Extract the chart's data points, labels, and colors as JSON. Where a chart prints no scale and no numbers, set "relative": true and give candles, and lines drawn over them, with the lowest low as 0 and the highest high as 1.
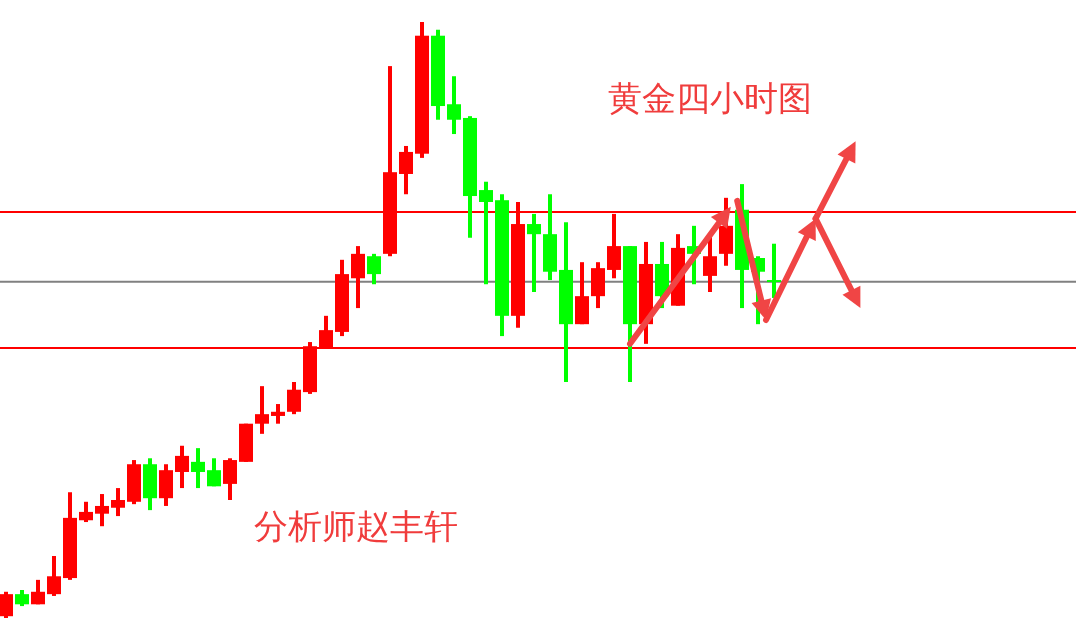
{
  "chart_data": {
    "type": "candlestick",
    "relative": true,
    "title": "黄金四小时图",
    "annotations": [
      "分析师赵丰轩"
    ],
    "categories": [
      null,
      null,
      null,
      null,
      null,
      null,
      null,
      null,
      null,
      null,
      null,
      null,
      null,
      null,
      null,
      null,
      null,
      null,
      null,
      null,
      null,
      null,
      null,
      null,
      null,
      null,
      null,
      null,
      null,
      null,
      null,
      null,
      null,
      null,
      null,
      null,
      null,
      null,
      null,
      null,
      null,
      null,
      null,
      null,
      null,
      null,
      null,
      null,
      null
    ],
    "ohlc": [
      [
        0.003,
        0.044,
        0,
        0.04
      ],
      [
        0.04,
        0.047,
        0.02,
        0.023
      ],
      [
        0.023,
        0.064,
        0.023,
        0.044
      ],
      [
        0.04,
        0.104,
        0.037,
        0.07
      ],
      [
        0.067,
        0.211,
        0.064,
        0.168
      ],
      [
        0.164,
        0.195,
        0.161,
        0.178
      ],
      [
        0.175,
        0.208,
        0.154,
        0.188
      ],
      [
        0.185,
        0.218,
        0.171,
        0.198
      ],
      [
        0.195,
        0.265,
        0.191,
        0.258
      ],
      [
        0.258,
        0.268,
        0.181,
        0.201
      ],
      [
        0.201,
        0.258,
        0.188,
        0.248
      ],
      [
        0.245,
        0.289,
        0.218,
        0.272
      ],
      [
        0.262,
        0.285,
        0.218,
        0.245
      ],
      [
        0.248,
        0.268,
        0.221,
        0.221
      ],
      [
        0.225,
        0.268,
        0.198,
        0.265
      ],
      [
        0.262,
        0.326,
        0.262,
        0.326
      ],
      [
        0.326,
        0.389,
        0.309,
        0.342
      ],
      [
        0.339,
        0.359,
        0.326,
        0.346
      ],
      [
        0.346,
        0.396,
        0.342,
        0.383
      ],
      [
        0.379,
        0.463,
        0.376,
        0.456
      ],
      [
        0.453,
        0.507,
        0.453,
        0.483
      ],
      [
        0.48,
        0.601,
        0.473,
        0.577
      ],
      [
        0.57,
        0.624,
        0.52,
        0.611
      ],
      [
        0.607,
        0.611,
        0.56,
        0.577
      ],
      [
        0.611,
        0.926,
        0.607,
        0.748
      ],
      [
        0.745,
        0.792,
        0.711,
        0.782
      ],
      [
        0.779,
        1,
        0.772,
        0.977
      ],
      [
        0.977,
        0.987,
        0.836,
        0.859
      ],
      [
        0.862,
        0.909,
        0.812,
        0.836
      ],
      [
        0.839,
        0.842,
        0.638,
        0.708
      ],
      [
        0.718,
        0.732,
        0.56,
        0.698
      ],
      [
        0.701,
        0.711,
        0.473,
        0.507
      ],
      [
        0.507,
        0.698,
        0.487,
        0.661
      ],
      [
        0.661,
        0.678,
        0.547,
        0.644
      ],
      [
        0.644,
        0.711,
        0.567,
        0.581
      ],
      [
        0.584,
        0.664,
        0.396,
        0.493
      ],
      [
        0.493,
        0.597,
        0.493,
        0.54
      ],
      [
        0.54,
        0.597,
        0.52,
        0.587
      ],
      [
        0.584,
        0.678,
        0.57,
        0.624
      ],
      [
        0.624,
        0.624,
        0.396,
        0.493
      ],
      [
        0.493,
        0.631,
        0.46,
        0.594
      ],
      [
        0.594,
        0.631,
        0.52,
        0.54
      ],
      [
        0.524,
        0.644,
        0.524,
        0.621
      ],
      [
        0.624,
        0.658,
        0.56,
        0.611
      ],
      [
        0.574,
        0.641,
        0.547,
        0.607
      ],
      [
        0.611,
        0.705,
        0.591,
        0.658
      ],
      [
        0.685,
        0.728,
        0.52,
        0.584
      ],
      [
        0.604,
        0.607,
        0.493,
        0.581
      ],
      [
        0.567,
        0.628,
        0.537,
        0.564
      ]
    ],
    "colors": [
      "#ff0000",
      "#00ff00",
      "#ff0000",
      "#ff0000",
      "#ff0000",
      "#ff0000",
      "#ff0000",
      "#ff0000",
      "#ff0000",
      "#00ff00",
      "#ff0000",
      "#ff0000",
      "#00ff00",
      "#00ff00",
      "#ff0000",
      "#ff0000",
      "#ff0000",
      "#ff0000",
      "#ff0000",
      "#ff0000",
      "#ff0000",
      "#ff0000",
      "#ff0000",
      "#00ff00",
      "#ff0000",
      "#ff0000",
      "#ff0000",
      "#00ff00",
      "#00ff00",
      "#00ff00",
      "#00ff00",
      "#00ff00",
      "#ff0000",
      "#00ff00",
      "#00ff00",
      "#00ff00",
      "#ff0000",
      "#ff0000",
      "#ff0000",
      "#00ff00",
      "#ff0000",
      "#00ff00",
      "#ff0000",
      "#00ff00",
      "#ff0000",
      "#ff0000",
      "#00ff00",
      "#00ff00",
      "#00ff00"
    ],
    "ref_lines": [
      {
        "axis": "y",
        "value": 0.681,
        "color": "#ff0000"
      },
      {
        "axis": "y",
        "value": 0.564,
        "color": "#808080"
      },
      {
        "axis": "y",
        "value": 0.453,
        "color": "#ff0000"
      }
    ]
  }
}
